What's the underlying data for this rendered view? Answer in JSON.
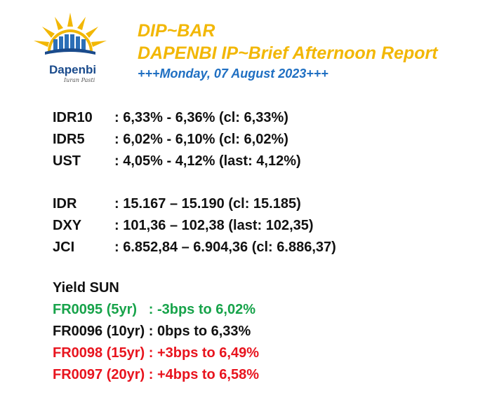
{
  "header": {
    "title": "DIP~BAR",
    "subtitle": "DAPENBI IP~Brief Afternoon Report",
    "date": "+++Monday, 07 August 2023+++"
  },
  "logo": {
    "name": "Dapenbi",
    "tagline": "Iuran Pasti",
    "colors": {
      "sun": "#f2b705",
      "building": "#2c6fb7",
      "text": "#1a4b8c"
    }
  },
  "yields": [
    {
      "label": "IDR10",
      "value": ": 6,33% - 6,36% (cl: 6,33%)"
    },
    {
      "label": "IDR5",
      "value": ": 6,02% - 6,10% (cl: 6,02%)"
    },
    {
      "label": "UST",
      "value": ": 4,05% - 4,12% (last: 4,12%)"
    }
  ],
  "markets": [
    {
      "label": "IDR",
      "value": ": 15.167 – 15.190 (cl: 15.185)"
    },
    {
      "label": "DXY",
      "value": ": 101,36 – 102,38 (last: 102,35)"
    },
    {
      "label": "JCI",
      "value": ": 6.852,84 – 6.904,36 (cl: 6.886,37)"
    }
  ],
  "sun": {
    "heading": "Yield SUN",
    "items": [
      {
        "text": "FR0095 (5yr)   : -3bps to 6,02%",
        "color": "#17a34a"
      },
      {
        "text": "FR0096 (10yr) : 0bps to 6,33%",
        "color": "#111111"
      },
      {
        "text": "FR0098 (15yr) : +3bps to 6,49%",
        "color": "#e8141e"
      },
      {
        "text": "FR0097 (20yr) : +4bps to 6,58%",
        "color": "#e8141e"
      }
    ]
  }
}
